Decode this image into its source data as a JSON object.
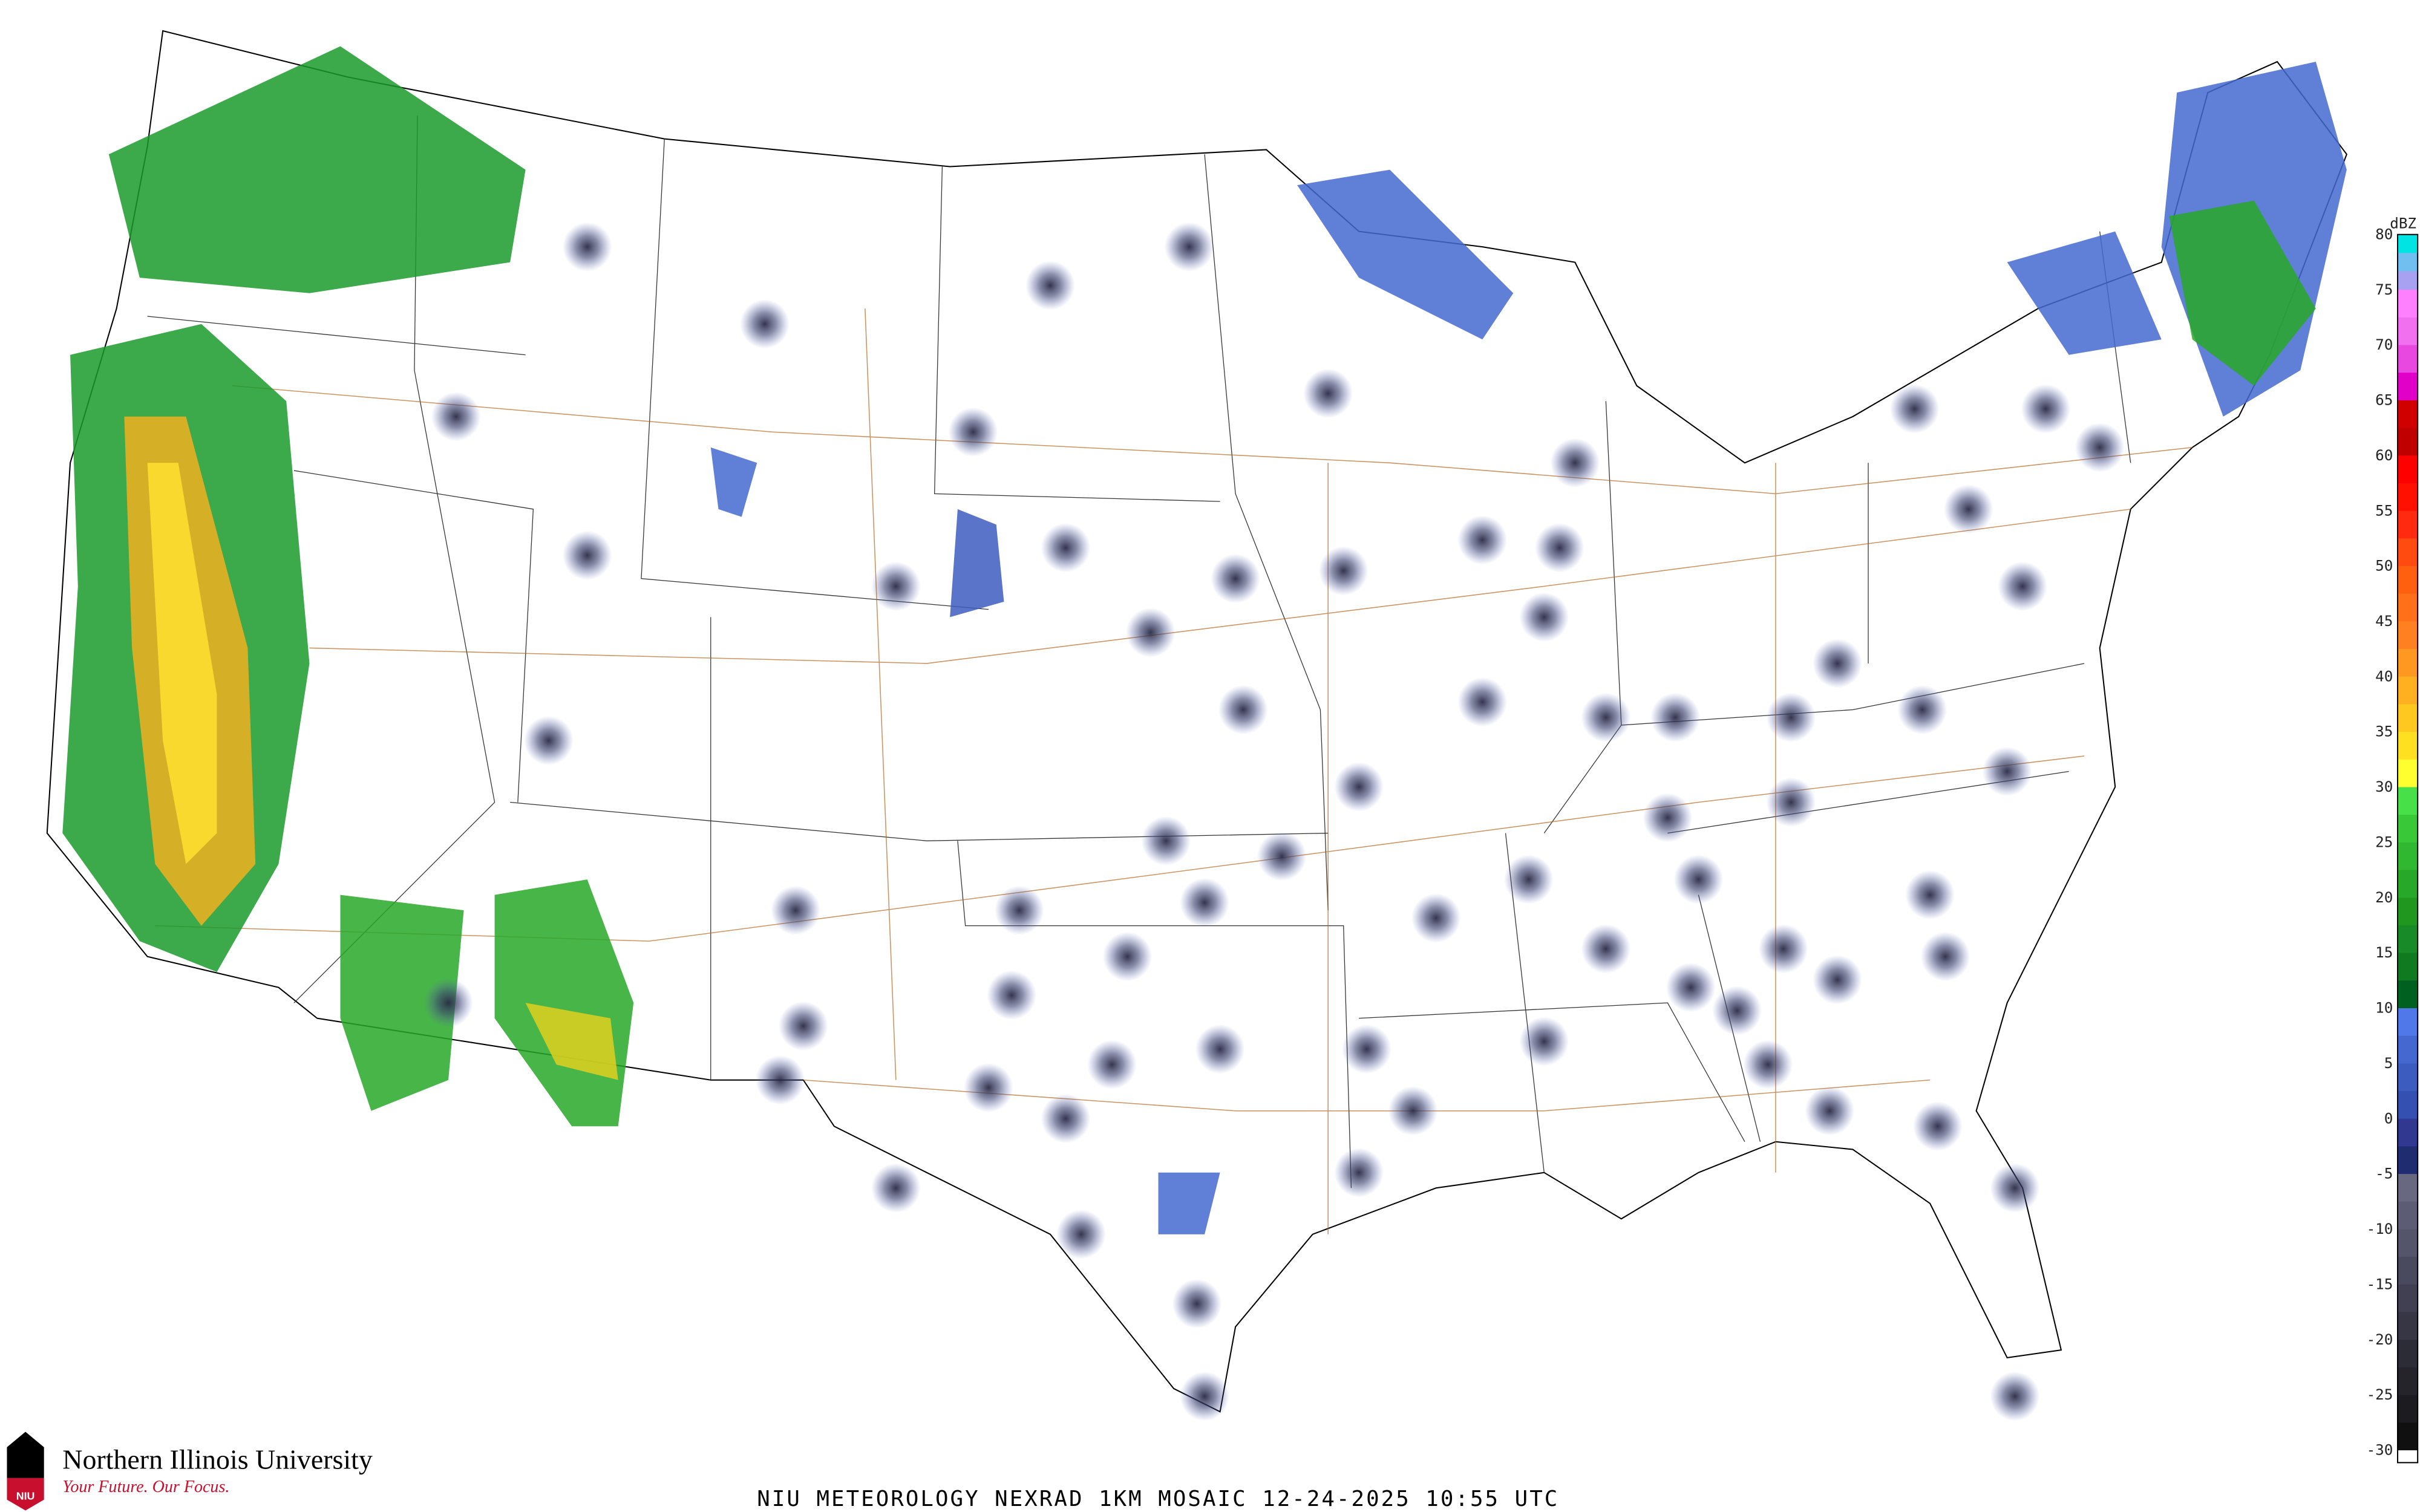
{
  "product": {
    "title": "NIU METEOROLOGY NEXRAD 1KM MOSAIC  12-24-2025 10:55 UTC"
  },
  "branding": {
    "university": "Northern Illinois University",
    "tagline": "Your Future. Our Focus.",
    "logo_text": "NIU",
    "logo_colors": {
      "top": "#000000",
      "bottom": "#c8102e"
    }
  },
  "legend": {
    "unit": "dBZ",
    "ticks": [
      "80",
      "75",
      "70",
      "65",
      "60",
      "55",
      "50",
      "45",
      "40",
      "35",
      "30",
      "25",
      "20",
      "15",
      "10",
      "5",
      "0",
      "-5",
      "-10",
      "-15",
      "-20",
      "-25",
      "-30"
    ],
    "range": [
      -30,
      80
    ],
    "bins": [
      {
        "from": 80,
        "colors": [
          "#00e4e4",
          "#70bff0",
          "#a8a0f0"
        ]
      },
      {
        "from": 75,
        "colors": [
          "#ff80ff",
          "#f070f0"
        ]
      },
      {
        "from": 70,
        "colors": [
          "#e848e0",
          "#e000c8"
        ]
      },
      {
        "from": 65,
        "colors": [
          "#d00000",
          "#c00000"
        ]
      },
      {
        "from": 60,
        "colors": [
          "#ff0000",
          "#ff1000"
        ]
      },
      {
        "from": 55,
        "colors": [
          "#ff2a10",
          "#ff4a10"
        ]
      },
      {
        "from": 50,
        "colors": [
          "#ff6010",
          "#ff7018"
        ]
      },
      {
        "from": 45,
        "colors": [
          "#ff8020",
          "#ff9820"
        ]
      },
      {
        "from": 40,
        "colors": [
          "#ffb020",
          "#ffc820"
        ]
      },
      {
        "from": 35,
        "colors": [
          "#ffe020",
          "#ffff30"
        ]
      },
      {
        "from": 30,
        "colors": [
          "#48e048",
          "#38c838"
        ]
      },
      {
        "from": 25,
        "colors": [
          "#30b830",
          "#28a828"
        ]
      },
      {
        "from": 20,
        "colors": [
          "#209820",
          "#188a28"
        ]
      },
      {
        "from": 15,
        "colors": [
          "#107a20",
          "#006020"
        ]
      },
      {
        "from": 10,
        "colors": [
          "#5078e8",
          "#4468d0"
        ]
      },
      {
        "from": 5,
        "colors": [
          "#3c5cc0",
          "#3450b0"
        ]
      },
      {
        "from": 0,
        "colors": [
          "#303890",
          "#202c70"
        ]
      },
      {
        "from": -5,
        "colors": [
          "#686880",
          "#5c5c74"
        ]
      },
      {
        "from": -10,
        "colors": [
          "#54546a",
          "#4a4a5e"
        ]
      },
      {
        "from": -15,
        "colors": [
          "#404052",
          "#363644"
        ]
      },
      {
        "from": -20,
        "colors": [
          "#2c2c36",
          "#24242a"
        ]
      },
      {
        "from": -25,
        "colors": [
          "#1c1c20",
          "#101010"
        ]
      },
      {
        "from": -30,
        "colors": [
          "#ffffff"
        ]
      }
    ]
  },
  "colors": {
    "land": "#ffffff",
    "borders": "#000000",
    "counties": "#cccccc",
    "highways": "#b5651d"
  }
}
